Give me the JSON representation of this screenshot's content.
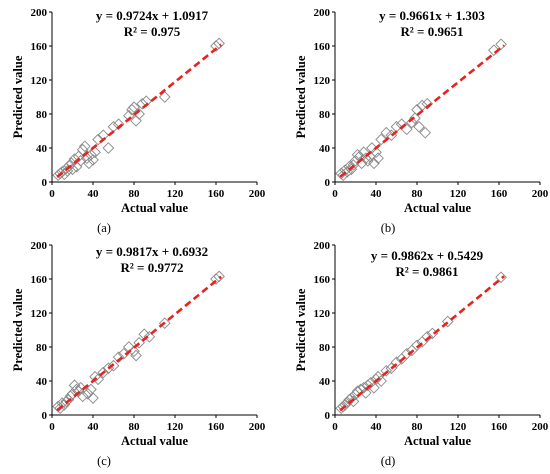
{
  "chart_data": [
    {
      "type": "scatter",
      "caption": "(a)",
      "xlabel": "Actual value",
      "ylabel": "Predicted value",
      "xlim": [
        0,
        200
      ],
      "ylim": [
        0,
        200
      ],
      "xticks": [
        "0",
        "40",
        "80",
        "120",
        "160",
        "200"
      ],
      "yticks": [
        "0",
        "40",
        "80",
        "120",
        "160",
        "200"
      ],
      "equation": "y = 0.9724x + 1.0917",
      "r2": "R² = 0.975",
      "trendline": {
        "slope": 0.9724,
        "intercept": 1.0917,
        "x_range": [
          5,
          165
        ],
        "style": "dashed",
        "color": "#e8221f"
      },
      "marker": "open-diamond",
      "points": [
        [
          6,
          8
        ],
        [
          8,
          10
        ],
        [
          10,
          12
        ],
        [
          12,
          9
        ],
        [
          14,
          16
        ],
        [
          15,
          13
        ],
        [
          17,
          19
        ],
        [
          19,
          22
        ],
        [
          20,
          15
        ],
        [
          22,
          27
        ],
        [
          24,
          18
        ],
        [
          26,
          30
        ],
        [
          28,
          25
        ],
        [
          30,
          38
        ],
        [
          32,
          42
        ],
        [
          34,
          28
        ],
        [
          36,
          22
        ],
        [
          38,
          32
        ],
        [
          40,
          26
        ],
        [
          42,
          35
        ],
        [
          45,
          50
        ],
        [
          50,
          55
        ],
        [
          55,
          40
        ],
        [
          60,
          65
        ],
        [
          65,
          68
        ],
        [
          75,
          78
        ],
        [
          78,
          85
        ],
        [
          80,
          88
        ],
        [
          82,
          72
        ],
        [
          85,
          80
        ],
        [
          88,
          92
        ],
        [
          92,
          95
        ],
        [
          110,
          100
        ],
        [
          160,
          160
        ],
        [
          163,
          163
        ]
      ]
    },
    {
      "type": "scatter",
      "caption": "(b)",
      "xlabel": "Actual value",
      "ylabel": "Predicted value",
      "xlim": [
        0,
        200
      ],
      "ylim": [
        0,
        200
      ],
      "xticks": [
        "0",
        "40",
        "80",
        "120",
        "160",
        "200"
      ],
      "yticks": [
        "0",
        "40",
        "80",
        "120",
        "160",
        "200"
      ],
      "equation": "y = 0.9661x + 1.303",
      "r2": "R² = 0.9651",
      "trendline": {
        "slope": 0.9661,
        "intercept": 1.303,
        "x_range": [
          5,
          165
        ],
        "style": "dashed",
        "color": "#e8221f"
      },
      "marker": "open-diamond",
      "points": [
        [
          6,
          10
        ],
        [
          8,
          8
        ],
        [
          10,
          14
        ],
        [
          12,
          12
        ],
        [
          14,
          18
        ],
        [
          16,
          15
        ],
        [
          18,
          20
        ],
        [
          20,
          25
        ],
        [
          22,
          32
        ],
        [
          24,
          30
        ],
        [
          26,
          22
        ],
        [
          28,
          35
        ],
        [
          30,
          28
        ],
        [
          32,
          25
        ],
        [
          34,
          30
        ],
        [
          36,
          40
        ],
        [
          38,
          22
        ],
        [
          40,
          35
        ],
        [
          42,
          28
        ],
        [
          45,
          50
        ],
        [
          50,
          58
        ],
        [
          55,
          55
        ],
        [
          60,
          65
        ],
        [
          65,
          68
        ],
        [
          70,
          62
        ],
        [
          75,
          70
        ],
        [
          78,
          75
        ],
        [
          80,
          85
        ],
        [
          82,
          65
        ],
        [
          85,
          90
        ],
        [
          88,
          58
        ],
        [
          90,
          92
        ],
        [
          155,
          155
        ],
        [
          162,
          162
        ]
      ]
    },
    {
      "type": "scatter",
      "caption": "(c)",
      "xlabel": "Actual value",
      "ylabel": "Predicted value",
      "xlim": [
        0,
        200
      ],
      "ylim": [
        0,
        200
      ],
      "xticks": [
        "0",
        "40",
        "80",
        "120",
        "160",
        "200"
      ],
      "yticks": [
        "0",
        "40",
        "80",
        "120",
        "160",
        "200"
      ],
      "equation": "y = 0.9817x + 0.6932",
      "r2": "R² = 0.9772",
      "trendline": {
        "slope": 0.9817,
        "intercept": 0.6932,
        "x_range": [
          5,
          165
        ],
        "style": "dashed",
        "color": "#e8221f"
      },
      "marker": "open-diamond",
      "points": [
        [
          6,
          10
        ],
        [
          8,
          8
        ],
        [
          10,
          14
        ],
        [
          12,
          12
        ],
        [
          14,
          16
        ],
        [
          16,
          18
        ],
        [
          18,
          22
        ],
        [
          20,
          25
        ],
        [
          22,
          35
        ],
        [
          24,
          30
        ],
        [
          26,
          28
        ],
        [
          28,
          32
        ],
        [
          30,
          22
        ],
        [
          35,
          25
        ],
        [
          38,
          30
        ],
        [
          40,
          20
        ],
        [
          42,
          45
        ],
        [
          45,
          42
        ],
        [
          50,
          50
        ],
        [
          55,
          55
        ],
        [
          60,
          58
        ],
        [
          65,
          68
        ],
        [
          70,
          72
        ],
        [
          75,
          80
        ],
        [
          80,
          75
        ],
        [
          82,
          70
        ],
        [
          85,
          85
        ],
        [
          90,
          95
        ],
        [
          95,
          92
        ],
        [
          110,
          108
        ],
        [
          160,
          160
        ],
        [
          163,
          163
        ]
      ]
    },
    {
      "type": "scatter",
      "caption": "(d)",
      "xlabel": "Actual value",
      "ylabel": "Predicted value",
      "xlim": [
        0,
        200
      ],
      "ylim": [
        0,
        200
      ],
      "xticks": [
        "0",
        "40",
        "80",
        "120",
        "160",
        "200"
      ],
      "yticks": [
        "0",
        "40",
        "80",
        "120",
        "160",
        "200"
      ],
      "equation": "y = 0.9862x + 0.5429",
      "r2": "R² = 0.9861",
      "trendline": {
        "slope": 0.9862,
        "intercept": 0.5429,
        "x_range": [
          5,
          165
        ],
        "style": "dashed",
        "color": "#e8221f"
      },
      "marker": "open-diamond",
      "points": [
        [
          6,
          8
        ],
        [
          8,
          10
        ],
        [
          10,
          12
        ],
        [
          12,
          15
        ],
        [
          14,
          18
        ],
        [
          16,
          20
        ],
        [
          18,
          16
        ],
        [
          20,
          24
        ],
        [
          22,
          28
        ],
        [
          25,
          30
        ],
        [
          28,
          32
        ],
        [
          30,
          26
        ],
        [
          32,
          35
        ],
        [
          35,
          38
        ],
        [
          38,
          32
        ],
        [
          40,
          42
        ],
        [
          42,
          45
        ],
        [
          45,
          40
        ],
        [
          50,
          52
        ],
        [
          55,
          55
        ],
        [
          60,
          62
        ],
        [
          65,
          66
        ],
        [
          70,
          72
        ],
        [
          75,
          76
        ],
        [
          80,
          82
        ],
        [
          85,
          86
        ],
        [
          90,
          92
        ],
        [
          95,
          96
        ],
        [
          110,
          110
        ],
        [
          162,
          162
        ]
      ]
    }
  ]
}
